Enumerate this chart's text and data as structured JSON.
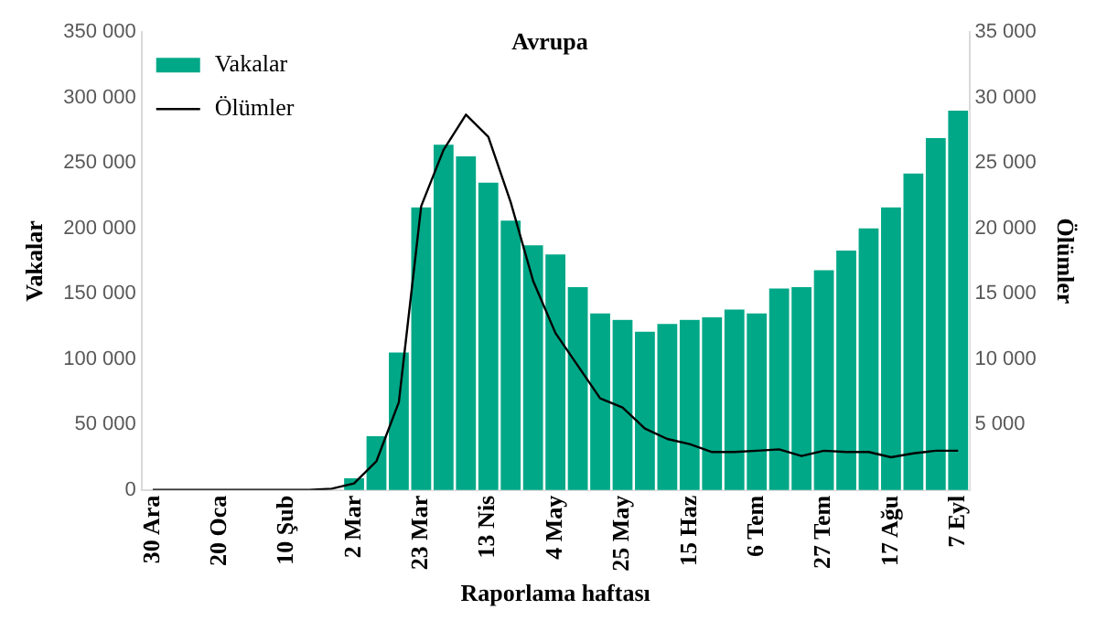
{
  "chart_data": {
    "type": "bar",
    "title": "Avrupa",
    "xlabel": "Raporlama haftası",
    "ylabel": "Vakalar",
    "y2label": "Ölümler",
    "categories": [
      "30 Ara",
      null,
      null,
      "20 Oca",
      null,
      null,
      "10 Şub",
      null,
      null,
      "2 Mar",
      null,
      null,
      "23 Mar",
      null,
      null,
      "13 Nis",
      null,
      null,
      "4 May",
      null,
      null,
      "25 May",
      null,
      null,
      "15 Haz",
      null,
      null,
      "6 Tem",
      null,
      null,
      "27 Tem",
      null,
      null,
      "17 Ağu",
      null,
      null,
      "7 Eyl"
    ],
    "series": [
      {
        "name": "Vakalar",
        "color": "#00a887",
        "values": [
          0,
          0,
          0,
          0,
          0,
          0,
          0,
          0,
          0,
          9000,
          41000,
          105000,
          216000,
          264000,
          255000,
          235000,
          206000,
          187000,
          180000,
          155000,
          135000,
          130000,
          121000,
          127000,
          130000,
          132000,
          138000,
          135000,
          154000,
          155000,
          168000,
          183000,
          200000,
          216000,
          242000,
          269000,
          290000
        ]
      },
      {
        "name": "Ölümler",
        "type": "line",
        "axis": "y2",
        "color": "#000000",
        "values": [
          0,
          0,
          0,
          0,
          0,
          0,
          0,
          0,
          100,
          500,
          2200,
          6700,
          21700,
          26000,
          28700,
          27000,
          22000,
          16000,
          12000,
          9500,
          7000,
          6300,
          4700,
          3900,
          3500,
          2900,
          2900,
          3000,
          3100,
          2600,
          3000,
          2900,
          2900,
          2500,
          2800,
          3000,
          3000
        ]
      }
    ],
    "ylim": [
      0,
      350000
    ],
    "yticks": [
      {
        "value": 0,
        "label": "0"
      },
      {
        "value": 50000,
        "label": "50 000"
      },
      {
        "value": 100000,
        "label": "100 000"
      },
      {
        "value": 150000,
        "label": "150 000"
      },
      {
        "value": 200000,
        "label": "200 000"
      },
      {
        "value": 250000,
        "label": "250 000"
      },
      {
        "value": 300000,
        "label": "300 000"
      },
      {
        "value": 350000,
        "label": "350 000"
      }
    ],
    "y2lim": [
      0,
      35000
    ],
    "y2ticks": [
      {
        "value": 5000,
        "label": "5 000"
      },
      {
        "value": 10000,
        "label": "10 000"
      },
      {
        "value": 15000,
        "label": "15 000"
      },
      {
        "value": 20000,
        "label": "20 000"
      },
      {
        "value": 25000,
        "label": "25 000"
      },
      {
        "value": 30000,
        "label": "30 000"
      },
      {
        "value": 35000,
        "label": "35 000"
      }
    ],
    "grid": false,
    "legend": "top left",
    "marker": "none",
    "line_style": "solid"
  }
}
